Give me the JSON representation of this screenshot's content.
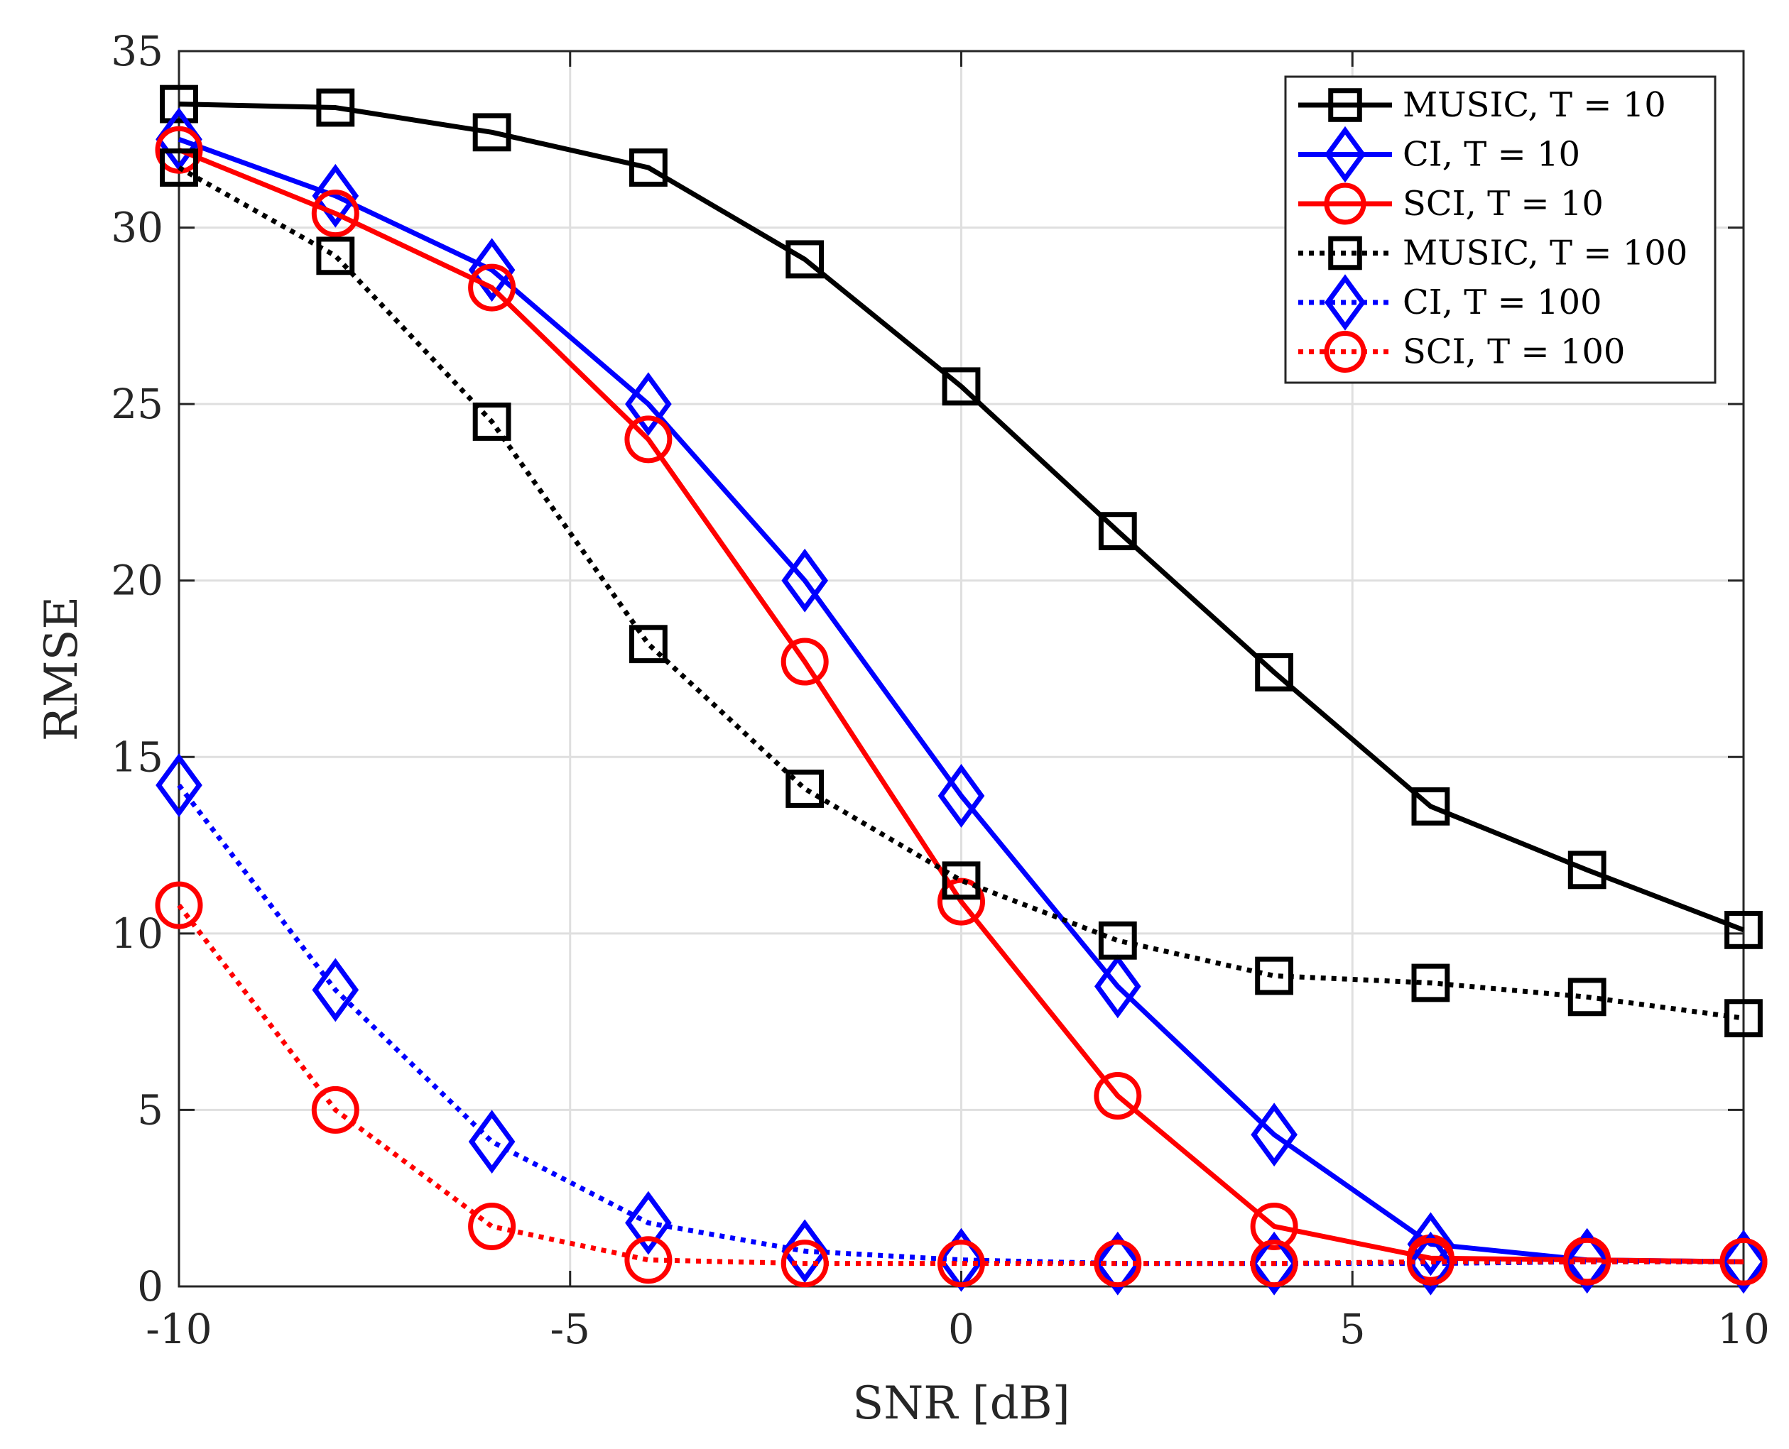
{
  "chart_data": {
    "type": "line",
    "title": "",
    "xlabel": "SNR [dB]",
    "ylabel": "RMSE",
    "xlim": [
      -10,
      10
    ],
    "ylim": [
      0,
      35
    ],
    "xticks": [
      -10,
      -5,
      0,
      5,
      10
    ],
    "xtick_labels": [
      "-10",
      "-5",
      "0",
      "5",
      "10"
    ],
    "yticks": [
      0,
      5,
      10,
      15,
      20,
      25,
      30,
      35
    ],
    "ytick_labels": [
      "0",
      "5",
      "10",
      "15",
      "20",
      "25",
      "30",
      "35"
    ],
    "grid": true,
    "legend_position": "top-right",
    "x": [
      -10,
      -8,
      -6,
      -4,
      -2,
      0,
      2,
      4,
      6,
      8,
      10
    ],
    "series": [
      {
        "name": "MUSIC, T = 10",
        "color": "#000000",
        "style": "solid",
        "marker": "square",
        "values": [
          33.5,
          33.4,
          32.7,
          31.7,
          29.1,
          25.5,
          21.4,
          17.4,
          13.6,
          11.8,
          10.1
        ]
      },
      {
        "name": "CI, T = 10",
        "color": "#0000ff",
        "style": "solid",
        "marker": "diamond",
        "values": [
          32.5,
          30.9,
          28.8,
          25.0,
          20.0,
          13.9,
          8.5,
          4.3,
          1.2,
          0.75,
          0.7
        ]
      },
      {
        "name": "SCI, T = 10",
        "color": "#ff0000",
        "style": "solid",
        "marker": "circle",
        "values": [
          32.2,
          30.4,
          28.3,
          24.0,
          17.7,
          10.9,
          5.4,
          1.7,
          0.8,
          0.75,
          0.7
        ]
      },
      {
        "name": "MUSIC, T = 100",
        "color": "#000000",
        "style": "dotted",
        "marker": "square",
        "values": [
          31.7,
          29.2,
          24.5,
          18.2,
          14.1,
          11.5,
          9.8,
          8.8,
          8.6,
          8.2,
          7.6
        ]
      },
      {
        "name": "CI, T = 100",
        "color": "#0000ff",
        "style": "dotted",
        "marker": "diamond",
        "values": [
          14.2,
          8.4,
          4.1,
          1.8,
          1.0,
          0.75,
          0.65,
          0.65,
          0.65,
          0.7,
          0.7
        ]
      },
      {
        "name": "SCI, T = 100",
        "color": "#ff0000",
        "style": "dotted",
        "marker": "circle",
        "values": [
          10.8,
          5.0,
          1.7,
          0.75,
          0.65,
          0.65,
          0.65,
          0.65,
          0.7,
          0.7,
          0.7
        ]
      }
    ]
  }
}
